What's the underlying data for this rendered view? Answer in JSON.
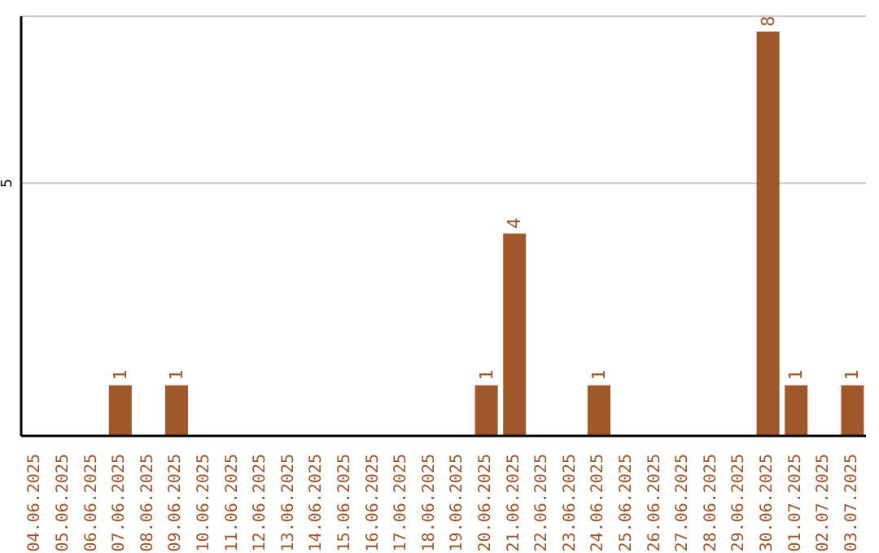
{
  "chart_data": {
    "type": "bar",
    "categories": [
      "04.06.2025",
      "05.06.2025",
      "06.06.2025",
      "07.06.2025",
      "08.06.2025",
      "09.06.2025",
      "10.06.2025",
      "11.06.2025",
      "12.06.2025",
      "13.06.2025",
      "14.06.2025",
      "15.06.2025",
      "16.06.2025",
      "17.06.2025",
      "18.06.2025",
      "19.06.2025",
      "20.06.2025",
      "21.06.2025",
      "22.06.2025",
      "23.06.2025",
      "24.06.2025",
      "25.06.2025",
      "26.06.2025",
      "27.06.2025",
      "28.06.2025",
      "29.06.2025",
      "30.06.2025",
      "01.07.2025",
      "02.07.2025",
      "03.07.2025"
    ],
    "values": [
      0,
      0,
      0,
      1,
      0,
      1,
      0,
      0,
      0,
      0,
      0,
      0,
      0,
      0,
      0,
      0,
      1,
      4,
      0,
      0,
      1,
      0,
      0,
      0,
      0,
      0,
      8,
      1,
      0,
      1
    ],
    "value_labels": [
      null,
      null,
      null,
      "1",
      null,
      "1",
      null,
      null,
      null,
      null,
      null,
      null,
      null,
      null,
      null,
      null,
      "1",
      "4",
      null,
      null,
      "1",
      null,
      null,
      null,
      null,
      null,
      "8",
      "1",
      null,
      "1"
    ],
    "color": "#a0572a",
    "ylim": [
      0,
      8.3
    ],
    "yticks": [
      5
    ],
    "grid": "y"
  }
}
